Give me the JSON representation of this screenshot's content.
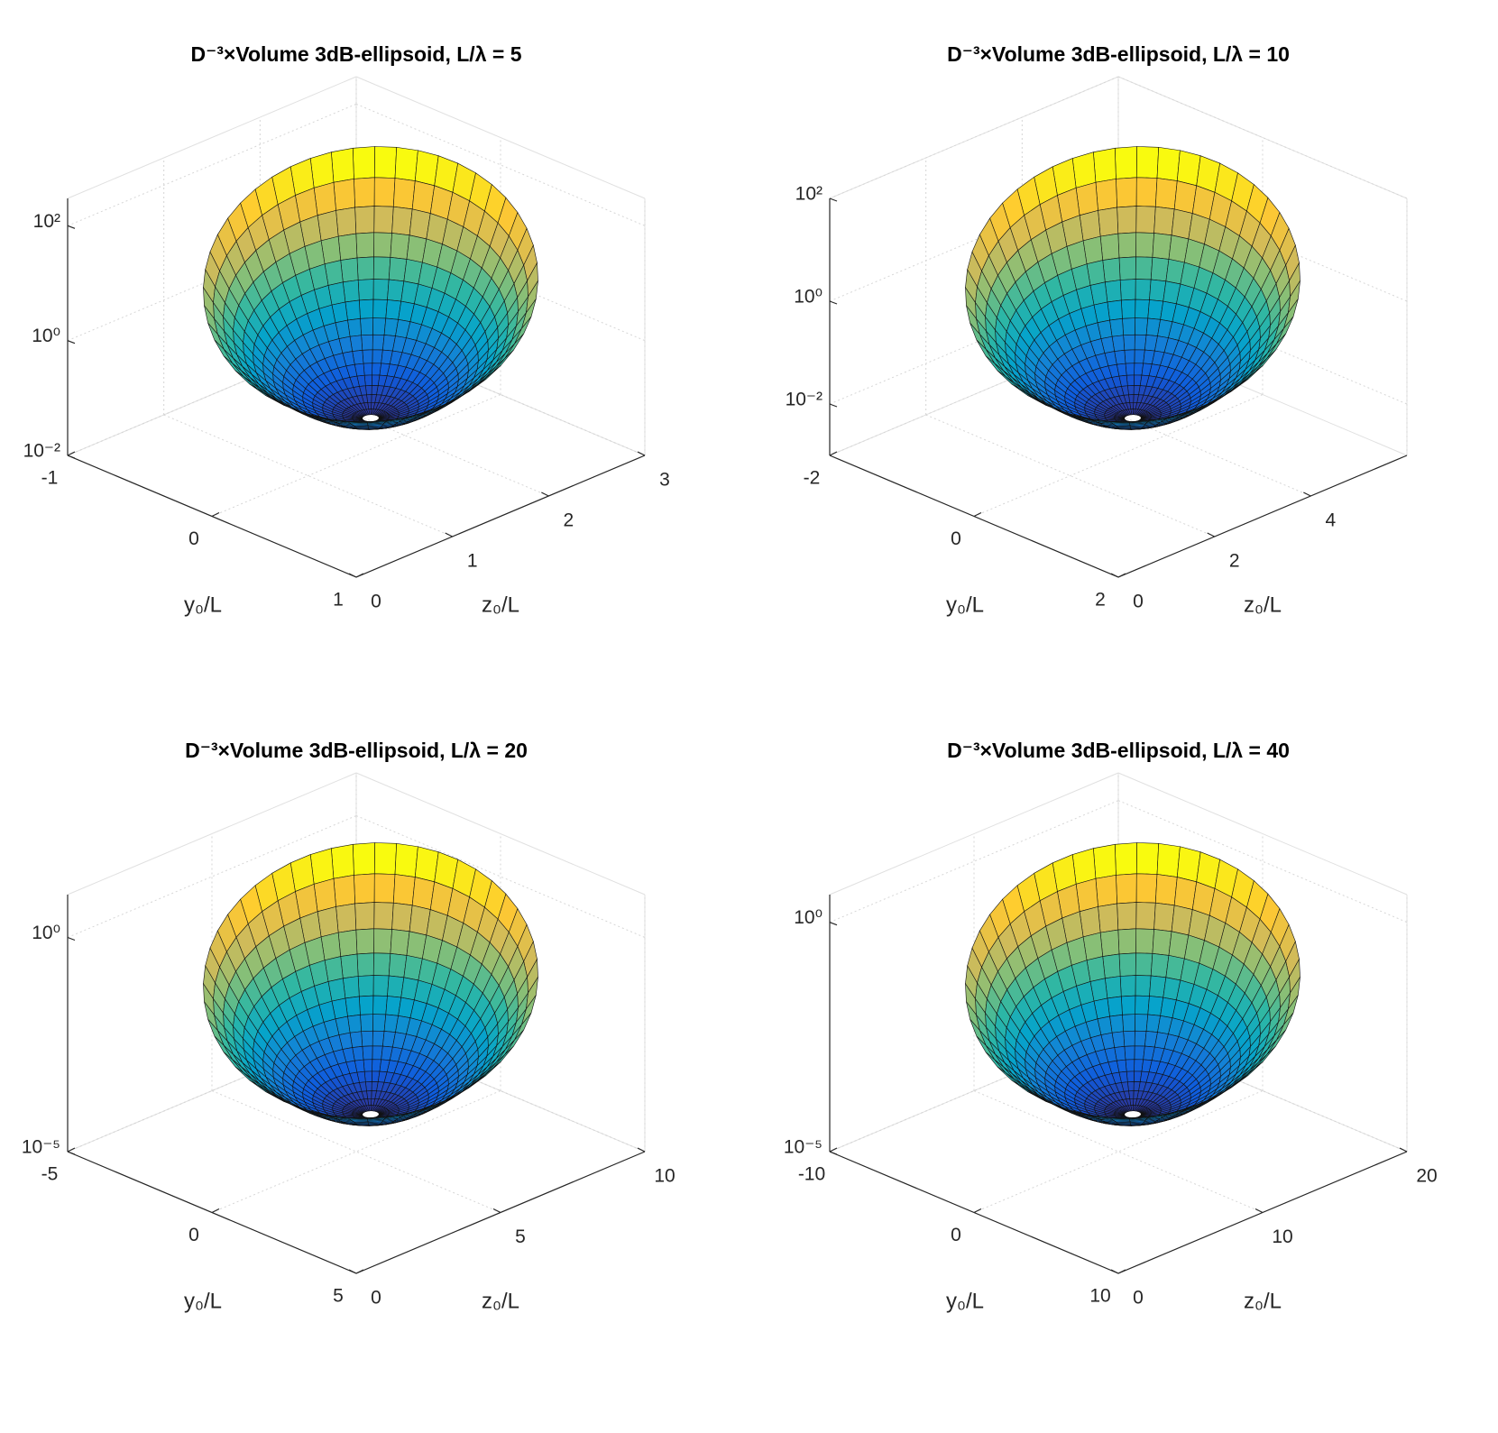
{
  "chart_data": [
    {
      "type": "surface",
      "title": "D⁻³×Volume 3dB-ellipsoid, L/λ = 5",
      "xlabel": "y₀/L",
      "ylabel": "z₀/L",
      "xlim": [
        -1,
        1
      ],
      "xticks": [
        -1,
        0,
        1
      ],
      "ylim": [
        0,
        3
      ],
      "yticks": [
        0,
        1,
        2,
        3
      ],
      "zlim": [
        0.01,
        300
      ],
      "zticks": [
        {
          "value": 0.01,
          "label": "10⁻²"
        },
        {
          "value": 1,
          "label": "10⁰"
        },
        {
          "value": 100,
          "label": "10²"
        }
      ],
      "zscale": "log",
      "grid": true
    },
    {
      "type": "surface",
      "title": "D⁻³×Volume 3dB-ellipsoid, L/λ = 10",
      "xlabel": "y₀/L",
      "ylabel": "z₀/L",
      "xlim": [
        -2,
        2
      ],
      "xticks": [
        -2,
        0,
        2
      ],
      "ylim": [
        0,
        6
      ],
      "yticks": [
        0,
        2,
        4
      ],
      "zlim": [
        0.001,
        100
      ],
      "zticks": [
        {
          "value": 0.01,
          "label": "10⁻²"
        },
        {
          "value": 1,
          "label": "10⁰"
        },
        {
          "value": 100,
          "label": "10²"
        }
      ],
      "zscale": "log",
      "grid": true
    },
    {
      "type": "surface",
      "title": "D⁻³×Volume 3dB-ellipsoid, L/λ = 20",
      "xlabel": "y₀/L",
      "ylabel": "z₀/L",
      "xlim": [
        -5,
        5
      ],
      "xticks": [
        -5,
        0,
        5
      ],
      "ylim": [
        0,
        10
      ],
      "yticks": [
        0,
        5,
        10
      ],
      "zlim": [
        1e-05,
        10
      ],
      "zticks": [
        {
          "value": 1e-05,
          "label": "10⁻⁵"
        },
        {
          "value": 1,
          "label": "10⁰"
        }
      ],
      "zscale": "log",
      "grid": true
    },
    {
      "type": "surface",
      "title": "D⁻³×Volume 3dB-ellipsoid, L/λ = 40",
      "xlabel": "y₀/L",
      "ylabel": "z₀/L",
      "xlim": [
        -10,
        10
      ],
      "xticks": [
        -10,
        0,
        10
      ],
      "ylim": [
        0,
        20
      ],
      "yticks": [
        0,
        10,
        20
      ],
      "zlim": [
        1e-05,
        4
      ],
      "zticks": [
        {
          "value": 1e-05,
          "label": "10⁻⁵"
        },
        {
          "value": 1,
          "label": "10⁰"
        }
      ],
      "zscale": "log",
      "grid": true
    }
  ]
}
